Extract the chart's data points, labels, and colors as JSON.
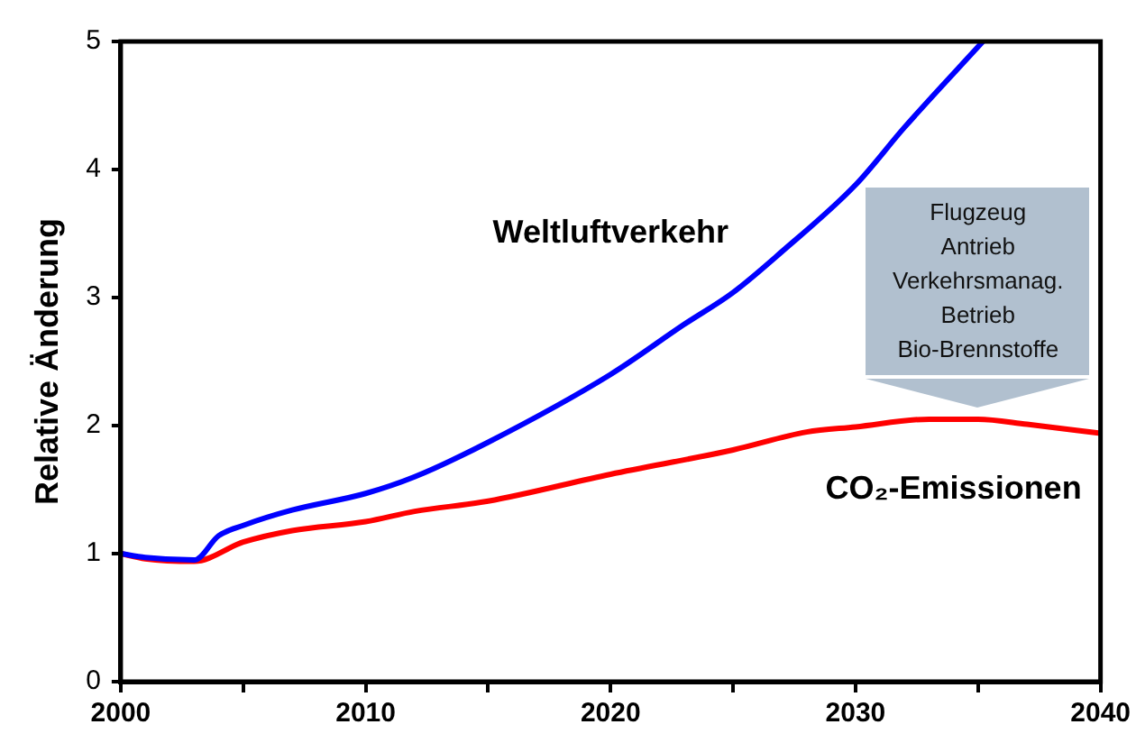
{
  "chart_data": {
    "type": "line",
    "ylabel": "Relative Änderung",
    "xlim": [
      2000,
      2040
    ],
    "xticks": [
      2000,
      {
        "value": 2005,
        "label": null
      },
      2010,
      {
        "value": 2015,
        "label": null
      },
      2020,
      {
        "value": 2025,
        "label": null
      },
      2030,
      {
        "value": 2035,
        "label": null
      },
      2040
    ],
    "ylim": [
      0,
      5
    ],
    "yticks": [
      0,
      1,
      2,
      3,
      4,
      5
    ],
    "grid": false,
    "legend": false,
    "marker": "none",
    "line_style": "solid",
    "series": [
      {
        "name": "Weltluftverkehr",
        "color": "#0000ff",
        "x": [
          2000,
          2001,
          2003,
          2004,
          2005,
          2007,
          2010,
          2012,
          2015,
          2020,
          2023,
          2025,
          2027,
          2030,
          2032,
          2035.2
        ],
        "values": [
          1.0,
          0.97,
          0.95,
          1.14,
          1.22,
          1.34,
          1.47,
          1.6,
          1.87,
          2.4,
          2.79,
          3.04,
          3.36,
          3.88,
          4.33,
          5.0
        ]
      },
      {
        "name": "CO₂-Emissionen",
        "color": "#ff0000",
        "x": [
          2000,
          2001,
          2003,
          2005,
          2007,
          2010,
          2012,
          2015,
          2020,
          2025,
          2028,
          2030,
          2033,
          2035,
          2037,
          2040
        ],
        "values": [
          1.0,
          0.96,
          0.94,
          1.09,
          1.18,
          1.25,
          1.33,
          1.41,
          1.62,
          1.81,
          1.95,
          1.99,
          2.05,
          2.05,
          2.01,
          1.94
        ]
      }
    ],
    "annotations": [
      {
        "text": "Flugzeug\nAntrieb\nVerkehrsmanag.\nBetrieb\nBio-Brennstoffe",
        "x": 2035,
        "y": 2.05
      }
    ]
  }
}
